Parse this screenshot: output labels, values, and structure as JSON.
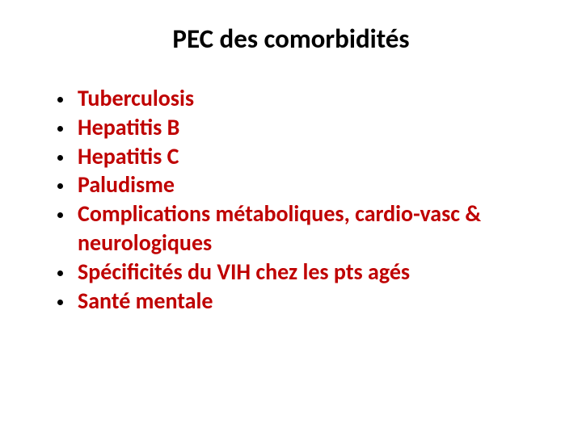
{
  "slide": {
    "title": "PEC des comorbidités",
    "title_color": "#000000",
    "title_fontsize": 33,
    "title_fontweight": 700,
    "background_color": "#ffffff",
    "bullet_color": "#bf0000",
    "bullet_marker_color": "#000000",
    "bullet_fontsize": 28,
    "bullet_fontweight": 700,
    "items": [
      "Tuberculosis",
      "Hepatitis B",
      "Hepatitis C",
      "Paludisme",
      "Complications métaboliques, cardio-vasc & neurologiques",
      "Spécificités du VIH chez les pts agés",
      "Santé mentale"
    ]
  }
}
